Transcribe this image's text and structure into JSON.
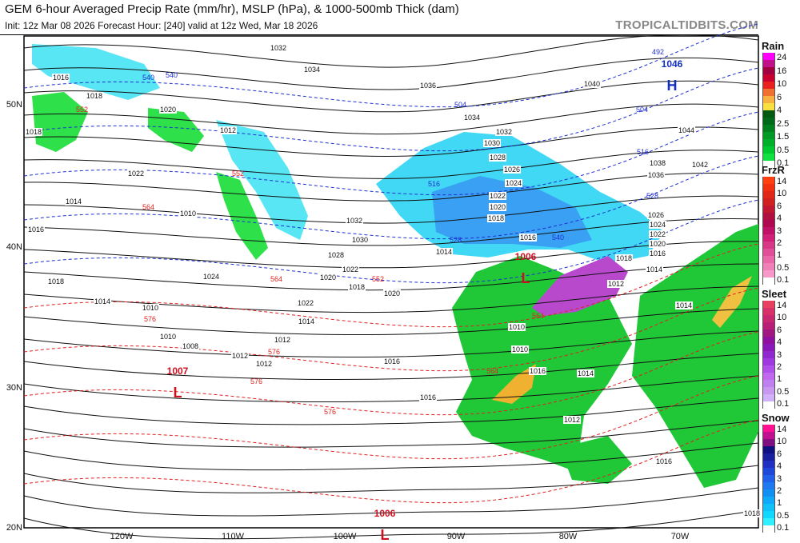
{
  "header": {
    "title": "GEM 6-hour Averaged Precip Rate (mm/hr), MSLP (hPa), & 1000-500mb Thick (dam)",
    "subtitle": "Init: 12z Mar 08 2026   Forecast Hour: [240]   valid at 12z Wed, Mar 18 2026",
    "brand": "TROPICALTIDBITS.COM"
  },
  "map": {
    "lat_labels": [
      "50N",
      "40N",
      "30N",
      "20N"
    ],
    "lon_labels": [
      "120W",
      "110W",
      "100W",
      "90W",
      "80W",
      "70W"
    ],
    "pressure_systems": [
      {
        "type": "H",
        "value": "1046"
      },
      {
        "type": "L",
        "value": "1006"
      },
      {
        "type": "L",
        "value": "1007"
      },
      {
        "type": "L",
        "value": "1006"
      }
    ],
    "isobar_labels": [
      "1016",
      "1018",
      "1018",
      "1020",
      "1022",
      "1014",
      "1016",
      "1018",
      "1014",
      "1010",
      "1010",
      "1008",
      "1012",
      "1012",
      "1012",
      "1014",
      "1016",
      "1016",
      "1032",
      "1034",
      "1036",
      "1040",
      "1044",
      "1038",
      "1042",
      "1036",
      "1034",
      "1032",
      "1030",
      "1028",
      "1026",
      "1024",
      "1022",
      "1020",
      "1018",
      "1016",
      "1014",
      "1012",
      "1010",
      "1024",
      "1022",
      "1020",
      "1018",
      "1020",
      "1022",
      "1028",
      "1030",
      "1032",
      "1026",
      "1024",
      "1022",
      "1020",
      "1018",
      "1016",
      "1014",
      "1012",
      "1010",
      "1016",
      "1014",
      "1012",
      "1010",
      "1016",
      "1018",
      "1014"
    ],
    "thickness_labels": [
      "492",
      "504",
      "504",
      "516",
      "516",
      "528",
      "528",
      "540",
      "540",
      "540",
      "552",
      "552",
      "552",
      "564",
      "564",
      "564",
      "576",
      "576",
      "576",
      "576",
      "564"
    ],
    "colors": {
      "rain": "#1fc93a",
      "snow": "#2fd6f0",
      "snow_deep": "#3a8ff0",
      "mix": "#b040c8",
      "heavy_rain": "#f0b030",
      "isobar": "#111111",
      "thickness": "#e02020",
      "thickness_cold": "#2030d0",
      "low": "#cc1020",
      "high": "#1030c0"
    }
  },
  "legends": [
    {
      "title": "Rain",
      "ticks": [
        "24",
        "16",
        "10",
        "6",
        "4",
        "2.5",
        "1.5",
        "0.5",
        "0.1"
      ],
      "colors": [
        "#ff00ff",
        "#c0108a",
        "#a00040",
        "#c80030",
        "#e82020",
        "#f07030",
        "#f8b040",
        "#f8e040",
        "#005a10",
        "#006a18",
        "#00801e",
        "#009a24",
        "#00b02a",
        "#00c830",
        "#10e040",
        "#ffffff"
      ]
    },
    {
      "title": "FrzR",
      "ticks": [
        "14",
        "10",
        "6",
        "4",
        "3",
        "2",
        "1",
        "0.5",
        "0.1"
      ],
      "colors": [
        "#ff4010",
        "#f03010",
        "#e02818",
        "#d02020",
        "#c01830",
        "#b01040",
        "#b00850",
        "#c01068",
        "#d02078",
        "#d83888",
        "#e05098",
        "#e868a8",
        "#f080b8",
        "#f898c8",
        "#ffffff"
      ]
    },
    {
      "title": "Sleet",
      "ticks": [
        "14",
        "10",
        "6",
        "4",
        "3",
        "2",
        "1",
        "0.5",
        "0.1"
      ],
      "colors": [
        "#e84060",
        "#d83068",
        "#c82870",
        "#b82078",
        "#a01880",
        "#9010a0",
        "#8818b8",
        "#9028d0",
        "#a038e0",
        "#b050e8",
        "#c068f0",
        "#c080f0",
        "#c898f0",
        "#d0b0f8",
        "#ffffff"
      ]
    },
    {
      "title": "Snow",
      "ticks": [
        "14",
        "10",
        "6",
        "4",
        "3",
        "2",
        "1",
        "0.5",
        "0.1"
      ],
      "colors": [
        "#ff1090",
        "#c01090",
        "#801080",
        "#101080",
        "#1820a0",
        "#2030c0",
        "#2048d8",
        "#2060e8",
        "#2078f0",
        "#1090f0",
        "#10a8f8",
        "#10c0f8",
        "#10d8ff",
        "#30f0ff",
        "#ffffff"
      ]
    }
  ]
}
